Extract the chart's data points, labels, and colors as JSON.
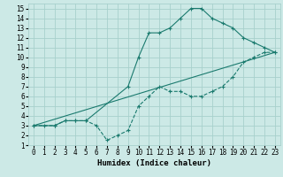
{
  "xlabel": "Humidex (Indice chaleur)",
  "xlim": [
    -0.5,
    23.5
  ],
  "ylim": [
    1,
    15.5
  ],
  "xticks": [
    0,
    1,
    2,
    3,
    4,
    5,
    6,
    7,
    8,
    9,
    10,
    11,
    12,
    13,
    14,
    15,
    16,
    17,
    18,
    19,
    20,
    21,
    22,
    23
  ],
  "yticks": [
    1,
    2,
    3,
    4,
    5,
    6,
    7,
    8,
    9,
    10,
    11,
    12,
    13,
    14,
    15
  ],
  "bg_color": "#cce9e6",
  "grid_color": "#a8d0cc",
  "line_color": "#1a7a6e",
  "line1_x": [
    0,
    1,
    2,
    3,
    4,
    5,
    6,
    7,
    8,
    9,
    10,
    11,
    12,
    13,
    14,
    15,
    16,
    17,
    18,
    19,
    20,
    21,
    22,
    23
  ],
  "line1_y": [
    3,
    3,
    3,
    3.5,
    3.5,
    3.5,
    3,
    1.5,
    2,
    2.5,
    5,
    6,
    7,
    6.5,
    6.5,
    6,
    6,
    6.5,
    7,
    8,
    9.5,
    10,
    10.5,
    10.5
  ],
  "line2_x": [
    0,
    2,
    3,
    4,
    5,
    9,
    10,
    11,
    12,
    13,
    14,
    15,
    16,
    17,
    18,
    19,
    20,
    21,
    22,
    23
  ],
  "line2_y": [
    3,
    3,
    3.5,
    3.5,
    3.5,
    7,
    10,
    12.5,
    12.5,
    13,
    14,
    15,
    15,
    14,
    13.5,
    13,
    12,
    11.5,
    11,
    10.5
  ],
  "line3_x": [
    0,
    23
  ],
  "line3_y": [
    3,
    10.5
  ],
  "xlabel_fontsize": 6.5,
  "tick_fontsize": 5.5
}
